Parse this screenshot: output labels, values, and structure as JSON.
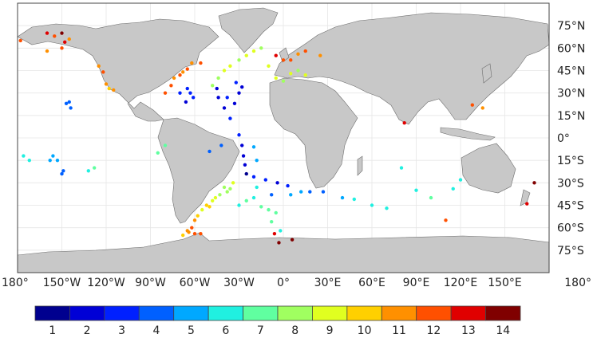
{
  "map": {
    "projection": "equirectangular",
    "lon_range": [
      -180,
      180
    ],
    "lat_range": [
      -90,
      90
    ],
    "colors": {
      "ocean": "#ffffff",
      "land": "#c8c8c8",
      "coast": "#6e6e6e",
      "grid": "#e6e6e6"
    },
    "lon_labels": [
      {
        "value": -180,
        "text": "180°"
      },
      {
        "value": -150,
        "text": "150°W"
      },
      {
        "value": -120,
        "text": "120°W"
      },
      {
        "value": -90,
        "text": "90°W"
      },
      {
        "value": -60,
        "text": "60°W"
      },
      {
        "value": -30,
        "text": "30°W"
      },
      {
        "value": 0,
        "text": "0°"
      },
      {
        "value": 30,
        "text": "30°E"
      },
      {
        "value": 60,
        "text": "60°E"
      },
      {
        "value": 90,
        "text": "90°E"
      },
      {
        "value": 120,
        "text": "120°E"
      },
      {
        "value": 150,
        "text": "150°E"
      },
      {
        "value": 180,
        "text": "180°"
      }
    ],
    "lat_labels": [
      {
        "value": 75,
        "text": "75°N"
      },
      {
        "value": 60,
        "text": "60°N"
      },
      {
        "value": 45,
        "text": "45°N"
      },
      {
        "value": 30,
        "text": "30°N"
      },
      {
        "value": 15,
        "text": "15°N"
      },
      {
        "value": 0,
        "text": "0°"
      },
      {
        "value": -15,
        "text": "15°S"
      },
      {
        "value": -30,
        "text": "30°S"
      },
      {
        "value": -45,
        "text": "45°S"
      },
      {
        "value": -60,
        "text": "60°S"
      },
      {
        "value": -75,
        "text": "75°S"
      }
    ]
  },
  "colorbar": {
    "labels": [
      "1",
      "2",
      "3",
      "4",
      "5",
      "6",
      "7",
      "8",
      "9",
      "10",
      "11",
      "12",
      "13",
      "14"
    ],
    "colors": [
      "#00008f",
      "#0000d6",
      "#0020ff",
      "#0060ff",
      "#00a8ff",
      "#20f0e0",
      "#60ffa0",
      "#a0ff60",
      "#e0ff20",
      "#ffd000",
      "#ff9000",
      "#ff5000",
      "#e00000",
      "#800000"
    ]
  },
  "chart_data": {
    "type": "scatter",
    "x_axis": "longitude",
    "y_axis": "latitude",
    "color_range": [
      1,
      14
    ],
    "series": [
      {
        "points": [
          [
            -45,
            33
          ],
          [
            -44,
            27
          ],
          [
            -40,
            20
          ],
          [
            -36,
            13
          ],
          [
            -30,
            2
          ],
          [
            -28,
            -5
          ],
          [
            -27,
            -12
          ],
          [
            -26,
            -18
          ],
          [
            -25,
            -24
          ],
          [
            -20,
            -26
          ],
          [
            -12,
            -28
          ],
          [
            -4,
            -30
          ],
          [
            3,
            -32
          ],
          [
            -38,
            27
          ],
          [
            -33,
            23
          ],
          [
            -30,
            30
          ],
          [
            -28,
            34
          ],
          [
            -32,
            37
          ],
          [
            -65,
            33
          ],
          [
            -63,
            30
          ],
          [
            -61,
            27
          ],
          [
            -66,
            24
          ],
          [
            -70,
            30
          ]
        ],
        "values": [
          2,
          2,
          2,
          3,
          3,
          2,
          2,
          2,
          1,
          3,
          3,
          2,
          3,
          3,
          2,
          2,
          2,
          3,
          3,
          3,
          3,
          2,
          3
        ]
      },
      {
        "points": [
          [
            -145,
            24
          ],
          [
            -144,
            20
          ],
          [
            -147,
            23
          ],
          [
            -150,
            -24
          ],
          [
            -149,
            -22
          ],
          [
            -153,
            -15
          ],
          [
            -156,
            -12
          ],
          [
            -158,
            -15
          ],
          [
            -50,
            -9
          ],
          [
            -42,
            -5
          ],
          [
            -20,
            -6
          ],
          [
            -18,
            -15
          ],
          [
            18,
            -36
          ],
          [
            27,
            -36
          ],
          [
            5,
            -38
          ],
          [
            12,
            -36
          ],
          [
            40,
            -40
          ],
          [
            48,
            -41
          ],
          [
            -8,
            -38
          ]
        ],
        "values": [
          4,
          4,
          4,
          4,
          4,
          5,
          5,
          5,
          4,
          4,
          5,
          5,
          4,
          4,
          5,
          5,
          5,
          6,
          4
        ]
      },
      {
        "points": [
          [
            -176,
            -12
          ],
          [
            -172,
            -15
          ],
          [
            -132,
            -22
          ],
          [
            -128,
            -20
          ],
          [
            -85,
            -10
          ],
          [
            -80,
            -5
          ],
          [
            -30,
            -45
          ],
          [
            -25,
            -42
          ],
          [
            -20,
            -40
          ],
          [
            -18,
            -33
          ],
          [
            -15,
            -46
          ],
          [
            -10,
            -48
          ],
          [
            60,
            -45
          ],
          [
            70,
            -47
          ],
          [
            90,
            -35
          ],
          [
            100,
            -40
          ],
          [
            115,
            -34
          ],
          [
            120,
            -28
          ],
          [
            80,
            -20
          ],
          [
            -5,
            -50
          ],
          [
            -8,
            -56
          ],
          [
            -2,
            -62
          ]
        ],
        "values": [
          6,
          6,
          6,
          7,
          7,
          7,
          6,
          7,
          6,
          6,
          7,
          7,
          6,
          6,
          6,
          7,
          6,
          6,
          6,
          7,
          7,
          6
        ]
      },
      {
        "points": [
          [
            -48,
            35
          ],
          [
            -44,
            40
          ],
          [
            -40,
            45
          ],
          [
            -36,
            48
          ],
          [
            -30,
            52
          ],
          [
            -25,
            55
          ],
          [
            -20,
            58
          ],
          [
            -15,
            60
          ],
          [
            -10,
            48
          ],
          [
            -5,
            40
          ],
          [
            0,
            38
          ],
          [
            5,
            43
          ],
          [
            10,
            45
          ],
          [
            15,
            42
          ],
          [
            -40,
            -33
          ],
          [
            -43,
            -38
          ],
          [
            -46,
            -40
          ],
          [
            -48,
            -42
          ],
          [
            -50,
            -46
          ],
          [
            -52,
            -45
          ],
          [
            -55,
            -48
          ],
          [
            -38,
            -36
          ],
          [
            -36,
            -34
          ],
          [
            -34,
            -30
          ]
        ],
        "values": [
          8,
          8,
          9,
          9,
          8,
          9,
          9,
          8,
          9,
          9,
          8,
          9,
          8,
          9,
          8,
          8,
          9,
          9,
          10,
          10,
          9,
          8,
          8,
          9
        ]
      },
      {
        "points": [
          [
            -125,
            48
          ],
          [
            -122,
            44
          ],
          [
            -120,
            36
          ],
          [
            -118,
            33
          ],
          [
            -115,
            32
          ],
          [
            -80,
            30
          ],
          [
            -76,
            35
          ],
          [
            -74,
            40
          ],
          [
            -70,
            42
          ],
          [
            -68,
            44
          ],
          [
            -65,
            46
          ],
          [
            -160,
            70
          ],
          [
            -155,
            68
          ],
          [
            -145,
            66
          ],
          [
            -150,
            60
          ],
          [
            -62,
            50
          ],
          [
            -56,
            50
          ],
          [
            -5,
            55
          ],
          [
            0,
            52
          ],
          [
            5,
            52
          ],
          [
            10,
            56
          ],
          [
            15,
            58
          ],
          [
            25,
            55
          ],
          [
            -160,
            58
          ],
          [
            -58,
            -52
          ],
          [
            -60,
            -55
          ],
          [
            -62,
            -60
          ],
          [
            -64,
            -63
          ],
          [
            -60,
            -64
          ],
          [
            -65,
            -62
          ],
          [
            -68,
            -65
          ],
          [
            -56,
            -64
          ],
          [
            110,
            -55
          ],
          [
            135,
            20
          ],
          [
            128,
            22
          ],
          [
            82,
            10
          ],
          [
            -178,
            65
          ]
        ],
        "values": [
          11,
          12,
          11,
          10,
          11,
          12,
          12,
          11,
          12,
          11,
          12,
          13,
          12,
          11,
          12,
          11,
          12,
          13,
          12,
          12,
          11,
          12,
          11,
          11,
          10,
          11,
          12,
          11,
          12,
          11,
          10,
          12,
          12,
          11,
          12,
          13,
          12
        ]
      },
      {
        "points": [
          [
            -148,
            64
          ],
          [
            -150,
            70
          ],
          [
            -6,
            -64
          ],
          [
            -3,
            -70
          ],
          [
            170,
            -30
          ],
          [
            165,
            -44
          ],
          [
            6,
            -68
          ]
        ],
        "values": [
          13,
          14,
          13,
          14,
          14,
          13,
          14
        ]
      }
    ]
  }
}
